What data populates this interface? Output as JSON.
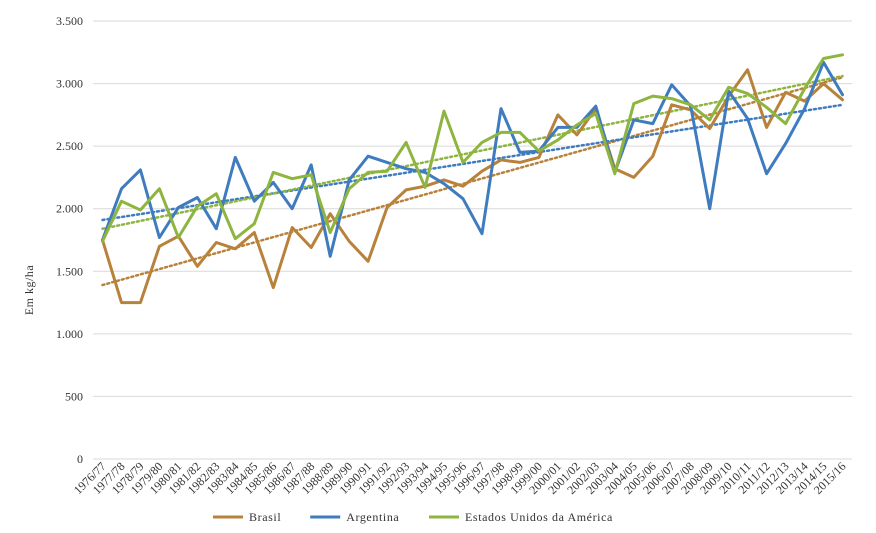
{
  "chart_data": {
    "type": "line",
    "ylabel": "Em kg/ha",
    "ylim": [
      0,
      3500
    ],
    "yticks": [
      0,
      500,
      1000,
      1500,
      2000,
      2500,
      3000,
      3500
    ],
    "ytick_labels": [
      "0",
      "500",
      "1.000",
      "1.500",
      "2.000",
      "2.500",
      "3.000",
      "3.500"
    ],
    "grid": true,
    "legend_position": "bottom",
    "categories": [
      "1976/77",
      "1977/78",
      "1978/79",
      "1979/80",
      "1980/81",
      "1981/82",
      "1982/83",
      "1983/84",
      "1984/85",
      "1985/86",
      "1986/87",
      "1987/88",
      "1988/89",
      "1989/90",
      "1990/91",
      "1991/92",
      "1992/93",
      "1993/94",
      "1994/95",
      "1995/96",
      "1996/97",
      "1997/98",
      "1998/99",
      "1999/00",
      "2000/01",
      "2001/02",
      "2002/03",
      "2003/04",
      "2004/05",
      "2005/06",
      "2006/07",
      "2007/08",
      "2008/09",
      "2009/10",
      "2010/11",
      "2011/12",
      "2012/13",
      "2013/14",
      "2014/15",
      "2015/16"
    ],
    "series": [
      {
        "name": "Brasil",
        "color": "#b8823b",
        "values": [
          1750,
          1250,
          1250,
          1700,
          1780,
          1540,
          1730,
          1680,
          1810,
          1370,
          1850,
          1690,
          1960,
          1740,
          1580,
          2010,
          2150,
          2180,
          2230,
          2180,
          2300,
          2390,
          2370,
          2410,
          2750,
          2590,
          2800,
          2320,
          2250,
          2420,
          2830,
          2790,
          2640,
          2900,
          3110,
          2650,
          2930,
          2860,
          3000,
          2870
        ],
        "trend": [
          1390,
          3050
        ]
      },
      {
        "name": "Argentina",
        "color": "#3f7cbf",
        "values": [
          1750,
          2160,
          2310,
          1770,
          2010,
          2090,
          1840,
          2410,
          2060,
          2210,
          2000,
          2350,
          1620,
          2230,
          2420,
          2370,
          2320,
          2290,
          2200,
          2080,
          1800,
          2800,
          2450,
          2460,
          2650,
          2650,
          2820,
          2290,
          2710,
          2680,
          2990,
          2820,
          2000,
          2940,
          2720,
          2280,
          2520,
          2800,
          3170,
          2910
        ],
        "trend": [
          1910,
          2830
        ]
      },
      {
        "name": "Estados Unidos da América",
        "color": "#8db53f",
        "values": [
          1740,
          2060,
          1990,
          2160,
          1770,
          2020,
          2120,
          1760,
          1880,
          2290,
          2240,
          2270,
          1810,
          2160,
          2290,
          2300,
          2530,
          2170,
          2780,
          2370,
          2530,
          2610,
          2610,
          2460,
          2550,
          2670,
          2760,
          2280,
          2840,
          2900,
          2880,
          2830,
          2710,
          2970,
          2920,
          2810,
          2680,
          2960,
          3200,
          3230
        ],
        "trend": [
          1840,
          3060
        ]
      }
    ]
  },
  "legend": {
    "items": [
      {
        "label": "Brasil",
        "color": "#b8823b"
      },
      {
        "label": "Argentina",
        "color": "#3f7cbf"
      },
      {
        "label": "Estados Unidos da América",
        "color": "#8db53f"
      }
    ]
  }
}
